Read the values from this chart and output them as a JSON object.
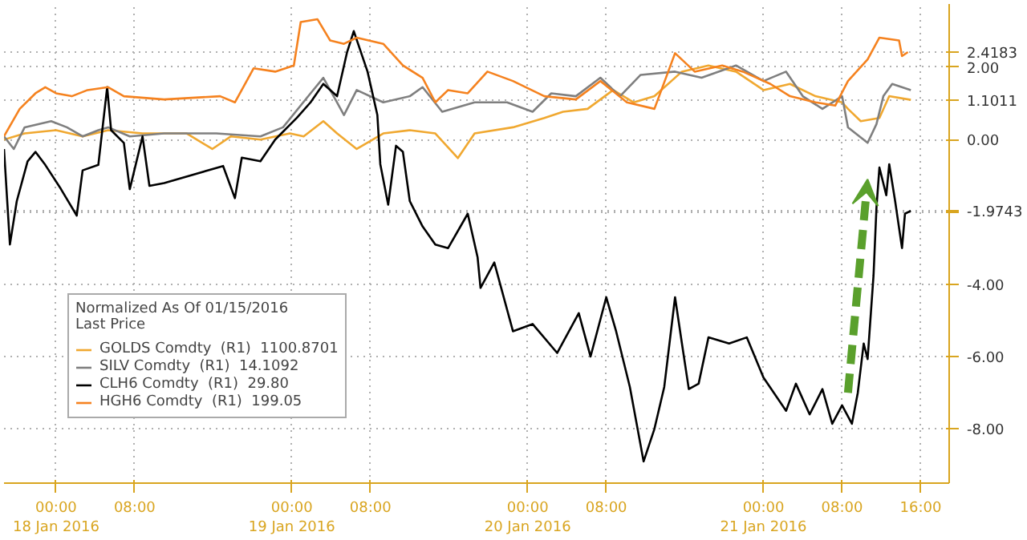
{
  "chart_data": {
    "type": "line",
    "legend_title": "Normalized As Of 01/15/2016\nLast Price",
    "legend": "bottom left",
    "grid": true,
    "xlim": [
      "2016-01-17T18:42",
      "2016-01-21T18:54"
    ],
    "ylim": [
      -9.5,
      3.75
    ],
    "xticks": [
      {
        "value": "2016-01-18T00:00",
        "label": "00:00\n18 Jan 2016"
      },
      {
        "value": "2016-01-18T08:00",
        "label": "08:00"
      },
      {
        "value": "2016-01-19T00:00",
        "label": "00:00\n19 Jan 2016"
      },
      {
        "value": "2016-01-19T08:00",
        "label": "08:00"
      },
      {
        "value": "2016-01-20T00:00",
        "label": "00:00\n20 Jan 2016"
      },
      {
        "value": "2016-01-20T08:00",
        "label": "08:00"
      },
      {
        "value": "2016-01-21T00:00",
        "label": "00:00\n21 Jan 2016"
      },
      {
        "value": "2016-01-21T08:00",
        "label": "08:00"
      },
      {
        "value": "2016-01-21T16:00",
        "label": "16:00"
      }
    ],
    "yticks": [
      {
        "value": 2.4183,
        "label": "2.4183"
      },
      {
        "value": 1.1011,
        "label": "1.1011"
      },
      {
        "value": -1.9743,
        "label": "-1.9743"
      },
      {
        "value": 2,
        "label": "2.00"
      },
      {
        "value": 0,
        "label": "0.00"
      },
      {
        "value": -2,
        "label": null
      },
      {
        "value": -4,
        "label": "-4.00"
      },
      {
        "value": -6,
        "label": "-6.00"
      },
      {
        "value": -8,
        "label": "-8.00"
      }
    ],
    "series": [
      {
        "name": "GOLDS Comdty  (R1)  1100.8701",
        "color": "#f0a830",
        "x": [
          "2016-01-17T18:42",
          "2016-01-17T20:48",
          "2016-01-18T00:00",
          "2016-01-18T02:42",
          "2016-01-18T05:18",
          "2016-01-18T08:48",
          "2016-01-18T13:18",
          "2016-01-18T15:54",
          "2016-01-18T17:48",
          "2016-01-18T20:48",
          "2016-01-18T23:48",
          "2016-01-19T01:12",
          "2016-01-19T03:12",
          "2016-01-19T04:36",
          "2016-01-19T06:36",
          "2016-01-19T09:18",
          "2016-01-19T12:00",
          "2016-01-19T14:36",
          "2016-01-19T16:54",
          "2016-01-19T18:36",
          "2016-01-19T22:30",
          "2016-01-20T01:42",
          "2016-01-20T03:36",
          "2016-01-20T06:06",
          "2016-01-20T08:42",
          "2016-01-20T10:48",
          "2016-01-20T12:54",
          "2016-01-20T15:42",
          "2016-01-20T18:24",
          "2016-01-20T21:12",
          "2016-01-21T00:00",
          "2016-01-21T02:42",
          "2016-01-21T05:18",
          "2016-01-21T08:00",
          "2016-01-21T08:36",
          "2016-01-21T09:54",
          "2016-01-21T11:48",
          "2016-01-21T12:48",
          "2016-01-21T15:00"
        ],
        "values": [
          0,
          0.17,
          0.26,
          0.09,
          0.26,
          0.17,
          0.17,
          -0.26,
          0.09,
          0,
          0.17,
          0.09,
          0.51,
          0.17,
          -0.26,
          0.17,
          0.26,
          0.17,
          -0.51,
          0.17,
          0.34,
          0.6,
          0.77,
          0.85,
          1.37,
          1.03,
          1.2,
          1.88,
          2.05,
          1.88,
          1.37,
          1.54,
          1.2,
          1.03,
          0.85,
          0.51,
          0.6,
          1.2,
          1.1
        ]
      },
      {
        "name": "SILV Comdty  (R1)  14.1092",
        "color": "#7f7f7f",
        "x": [
          "2016-01-17T18:42",
          "2016-01-17T19:42",
          "2016-01-17T20:48",
          "2016-01-17T23:30",
          "2016-01-18T01:06",
          "2016-01-18T02:42",
          "2016-01-18T04:18",
          "2016-01-18T05:18",
          "2016-01-18T07:30",
          "2016-01-18T11:00",
          "2016-01-18T16:18",
          "2016-01-18T20:48",
          "2016-01-18T23:06",
          "2016-01-19T01:54",
          "2016-01-19T03:12",
          "2016-01-19T04:36",
          "2016-01-19T05:18",
          "2016-01-19T06:36",
          "2016-01-19T09:18",
          "2016-01-19T12:00",
          "2016-01-19T13:18",
          "2016-01-19T15:18",
          "2016-01-19T18:36",
          "2016-01-19T21:54",
          "2016-01-20T00:30",
          "2016-01-20T02:24",
          "2016-01-20T04:54",
          "2016-01-20T07:24",
          "2016-01-20T09:24",
          "2016-01-20T11:30",
          "2016-01-20T15:00",
          "2016-01-20T17:42",
          "2016-01-20T21:12",
          "2016-01-21T00:00",
          "2016-01-21T02:18",
          "2016-01-21T04:00",
          "2016-01-21T06:00",
          "2016-01-21T08:00",
          "2016-01-21T08:36",
          "2016-01-21T10:36",
          "2016-01-21T11:30",
          "2016-01-21T12:12",
          "2016-01-21T13:06",
          "2016-01-21T15:00"
        ],
        "values": [
          0.09,
          -0.26,
          0.34,
          0.51,
          0.34,
          0.09,
          0.26,
          0.34,
          0.09,
          0.17,
          0.17,
          0.09,
          0.34,
          1.28,
          1.71,
          1.03,
          0.68,
          1.37,
          1.03,
          1.2,
          1.45,
          0.77,
          1.03,
          1.03,
          0.77,
          1.28,
          1.2,
          1.71,
          1.2,
          1.79,
          1.88,
          1.71,
          2.05,
          1.62,
          1.88,
          1.2,
          0.85,
          1.2,
          0.34,
          -0.09,
          0.43,
          1.2,
          1.54,
          1.37
        ]
      },
      {
        "name": "CLH6 Comdty  (R1)  29.80",
        "color": "#000000",
        "x": [
          "2016-01-17T18:42",
          "2016-01-17T19:18",
          "2016-01-17T20:00",
          "2016-01-17T21:06",
          "2016-01-17T21:54",
          "2016-01-17T22:54",
          "2016-01-18T00:30",
          "2016-01-18T02:06",
          "2016-01-18T02:42",
          "2016-01-18T04:18",
          "2016-01-18T05:12",
          "2016-01-18T05:36",
          "2016-01-18T06:54",
          "2016-01-18T07:30",
          "2016-01-18T08:48",
          "2016-01-18T09:30",
          "2016-01-18T11:00",
          "2016-01-18T17:00",
          "2016-01-18T18:12",
          "2016-01-18T18:54",
          "2016-01-18T20:48",
          "2016-01-18T22:18",
          "2016-01-19T00:30",
          "2016-01-19T01:54",
          "2016-01-19T03:12",
          "2016-01-19T04:36",
          "2016-01-19T05:36",
          "2016-01-19T06:18",
          "2016-01-19T07:42",
          "2016-01-19T08:42",
          "2016-01-19T09:00",
          "2016-01-19T09:48",
          "2016-01-19T10:36",
          "2016-01-19T11:18",
          "2016-01-19T12:00",
          "2016-01-19T13:18",
          "2016-01-19T14:36",
          "2016-01-19T15:54",
          "2016-01-19T17:54",
          "2016-01-19T18:54",
          "2016-01-19T19:12",
          "2016-01-19T20:36",
          "2016-01-19T22:30",
          "2016-01-20T00:30",
          "2016-01-20T03:00",
          "2016-01-20T05:12",
          "2016-01-20T06:24",
          "2016-01-20T08:00",
          "2016-01-20T09:00",
          "2016-01-20T10:24",
          "2016-01-20T11:48",
          "2016-01-20T12:54",
          "2016-01-20T13:54",
          "2016-01-20T15:00",
          "2016-01-20T15:42",
          "2016-01-20T16:24",
          "2016-01-20T17:24",
          "2016-01-20T18:24",
          "2016-01-20T20:30",
          "2016-01-20T22:18",
          "2016-01-21T00:00",
          "2016-01-21T02:18",
          "2016-01-21T03:18",
          "2016-01-21T04:42",
          "2016-01-21T06:00",
          "2016-01-21T07:00",
          "2016-01-21T08:00",
          "2016-01-21T09:00",
          "2016-01-21T09:36",
          "2016-01-21T10:12",
          "2016-01-21T10:36",
          "2016-01-21T11:12",
          "2016-01-21T11:30",
          "2016-01-21T11:48",
          "2016-01-21T12:30",
          "2016-01-21T12:48",
          "2016-01-21T13:24",
          "2016-01-21T14:06",
          "2016-01-21T14:24",
          "2016-01-21T15:00"
        ],
        "values": [
          -0.26,
          -2.9,
          -1.7,
          -0.6,
          -0.34,
          -0.7,
          -1.37,
          -2.1,
          -0.85,
          -0.7,
          1.45,
          0.26,
          -0.09,
          -1.37,
          0.09,
          -1.28,
          -1.2,
          -0.73,
          -1.62,
          -0.5,
          -0.6,
          0,
          0.6,
          1.03,
          1.54,
          1.2,
          2.4,
          3.0,
          1.88,
          0.68,
          -0.68,
          -1.8,
          -0.17,
          -0.34,
          -1.7,
          -2.4,
          -2.9,
          -3.0,
          -2.05,
          -3.25,
          -4.1,
          -3.4,
          -5.3,
          -5.1,
          -5.9,
          -4.8,
          -6.0,
          -4.36,
          -5.3,
          -6.84,
          -8.9,
          -8.0,
          -6.84,
          -4.36,
          -5.64,
          -6.9,
          -6.75,
          -5.47,
          -5.64,
          -5.47,
          -6.58,
          -7.5,
          -6.75,
          -7.6,
          -6.9,
          -7.86,
          -7.35,
          -7.86,
          -7.0,
          -5.64,
          -6.07,
          -3.76,
          -1.88,
          -0.77,
          -1.54,
          -0.68,
          -1.7,
          -3.0,
          -2.05,
          -1.97
        ]
      },
      {
        "name": "HGH6 Comdty  (R1)  199.05",
        "color": "#f5821f",
        "x": [
          "2016-01-17T18:42",
          "2016-01-17T20:18",
          "2016-01-17T21:54",
          "2016-01-17T22:54",
          "2016-01-18T00:00",
          "2016-01-18T01:36",
          "2016-01-18T03:12",
          "2016-01-18T05:18",
          "2016-01-18T06:54",
          "2016-01-18T11:00",
          "2016-01-18T16:42",
          "2016-01-18T18:12",
          "2016-01-18T20:06",
          "2016-01-18T22:18",
          "2016-01-19T00:12",
          "2016-01-19T00:54",
          "2016-01-19T02:36",
          "2016-01-19T03:54",
          "2016-01-19T05:18",
          "2016-01-19T06:36",
          "2016-01-19T09:18",
          "2016-01-19T11:18",
          "2016-01-19T13:18",
          "2016-01-19T14:36",
          "2016-01-19T15:54",
          "2016-01-19T17:54",
          "2016-01-19T19:54",
          "2016-01-19T22:30",
          "2016-01-20T01:42",
          "2016-01-20T04:54",
          "2016-01-20T07:24",
          "2016-01-20T10:06",
          "2016-01-20T12:54",
          "2016-01-20T15:00",
          "2016-01-20T17:00",
          "2016-01-20T19:48",
          "2016-01-20T21:54",
          "2016-01-21T00:42",
          "2016-01-21T02:42",
          "2016-01-21T05:18",
          "2016-01-21T07:18",
          "2016-01-21T08:36",
          "2016-01-21T10:36",
          "2016-01-21T11:48",
          "2016-01-21T13:48",
          "2016-01-21T14:06",
          "2016-01-21T14:42"
        ],
        "values": [
          0.09,
          0.85,
          1.28,
          1.45,
          1.28,
          1.2,
          1.37,
          1.45,
          1.2,
          1.11,
          1.2,
          1.03,
          1.97,
          1.88,
          2.05,
          3.25,
          3.33,
          2.74,
          2.65,
          2.82,
          2.65,
          2.05,
          1.71,
          1.03,
          1.37,
          1.28,
          1.88,
          1.62,
          1.2,
          1.11,
          1.62,
          1.03,
          0.85,
          2.39,
          1.88,
          2.05,
          1.88,
          1.54,
          1.2,
          1.03,
          0.94,
          1.62,
          2.22,
          2.82,
          2.74,
          2.31,
          2.42
        ]
      }
    ]
  }
}
